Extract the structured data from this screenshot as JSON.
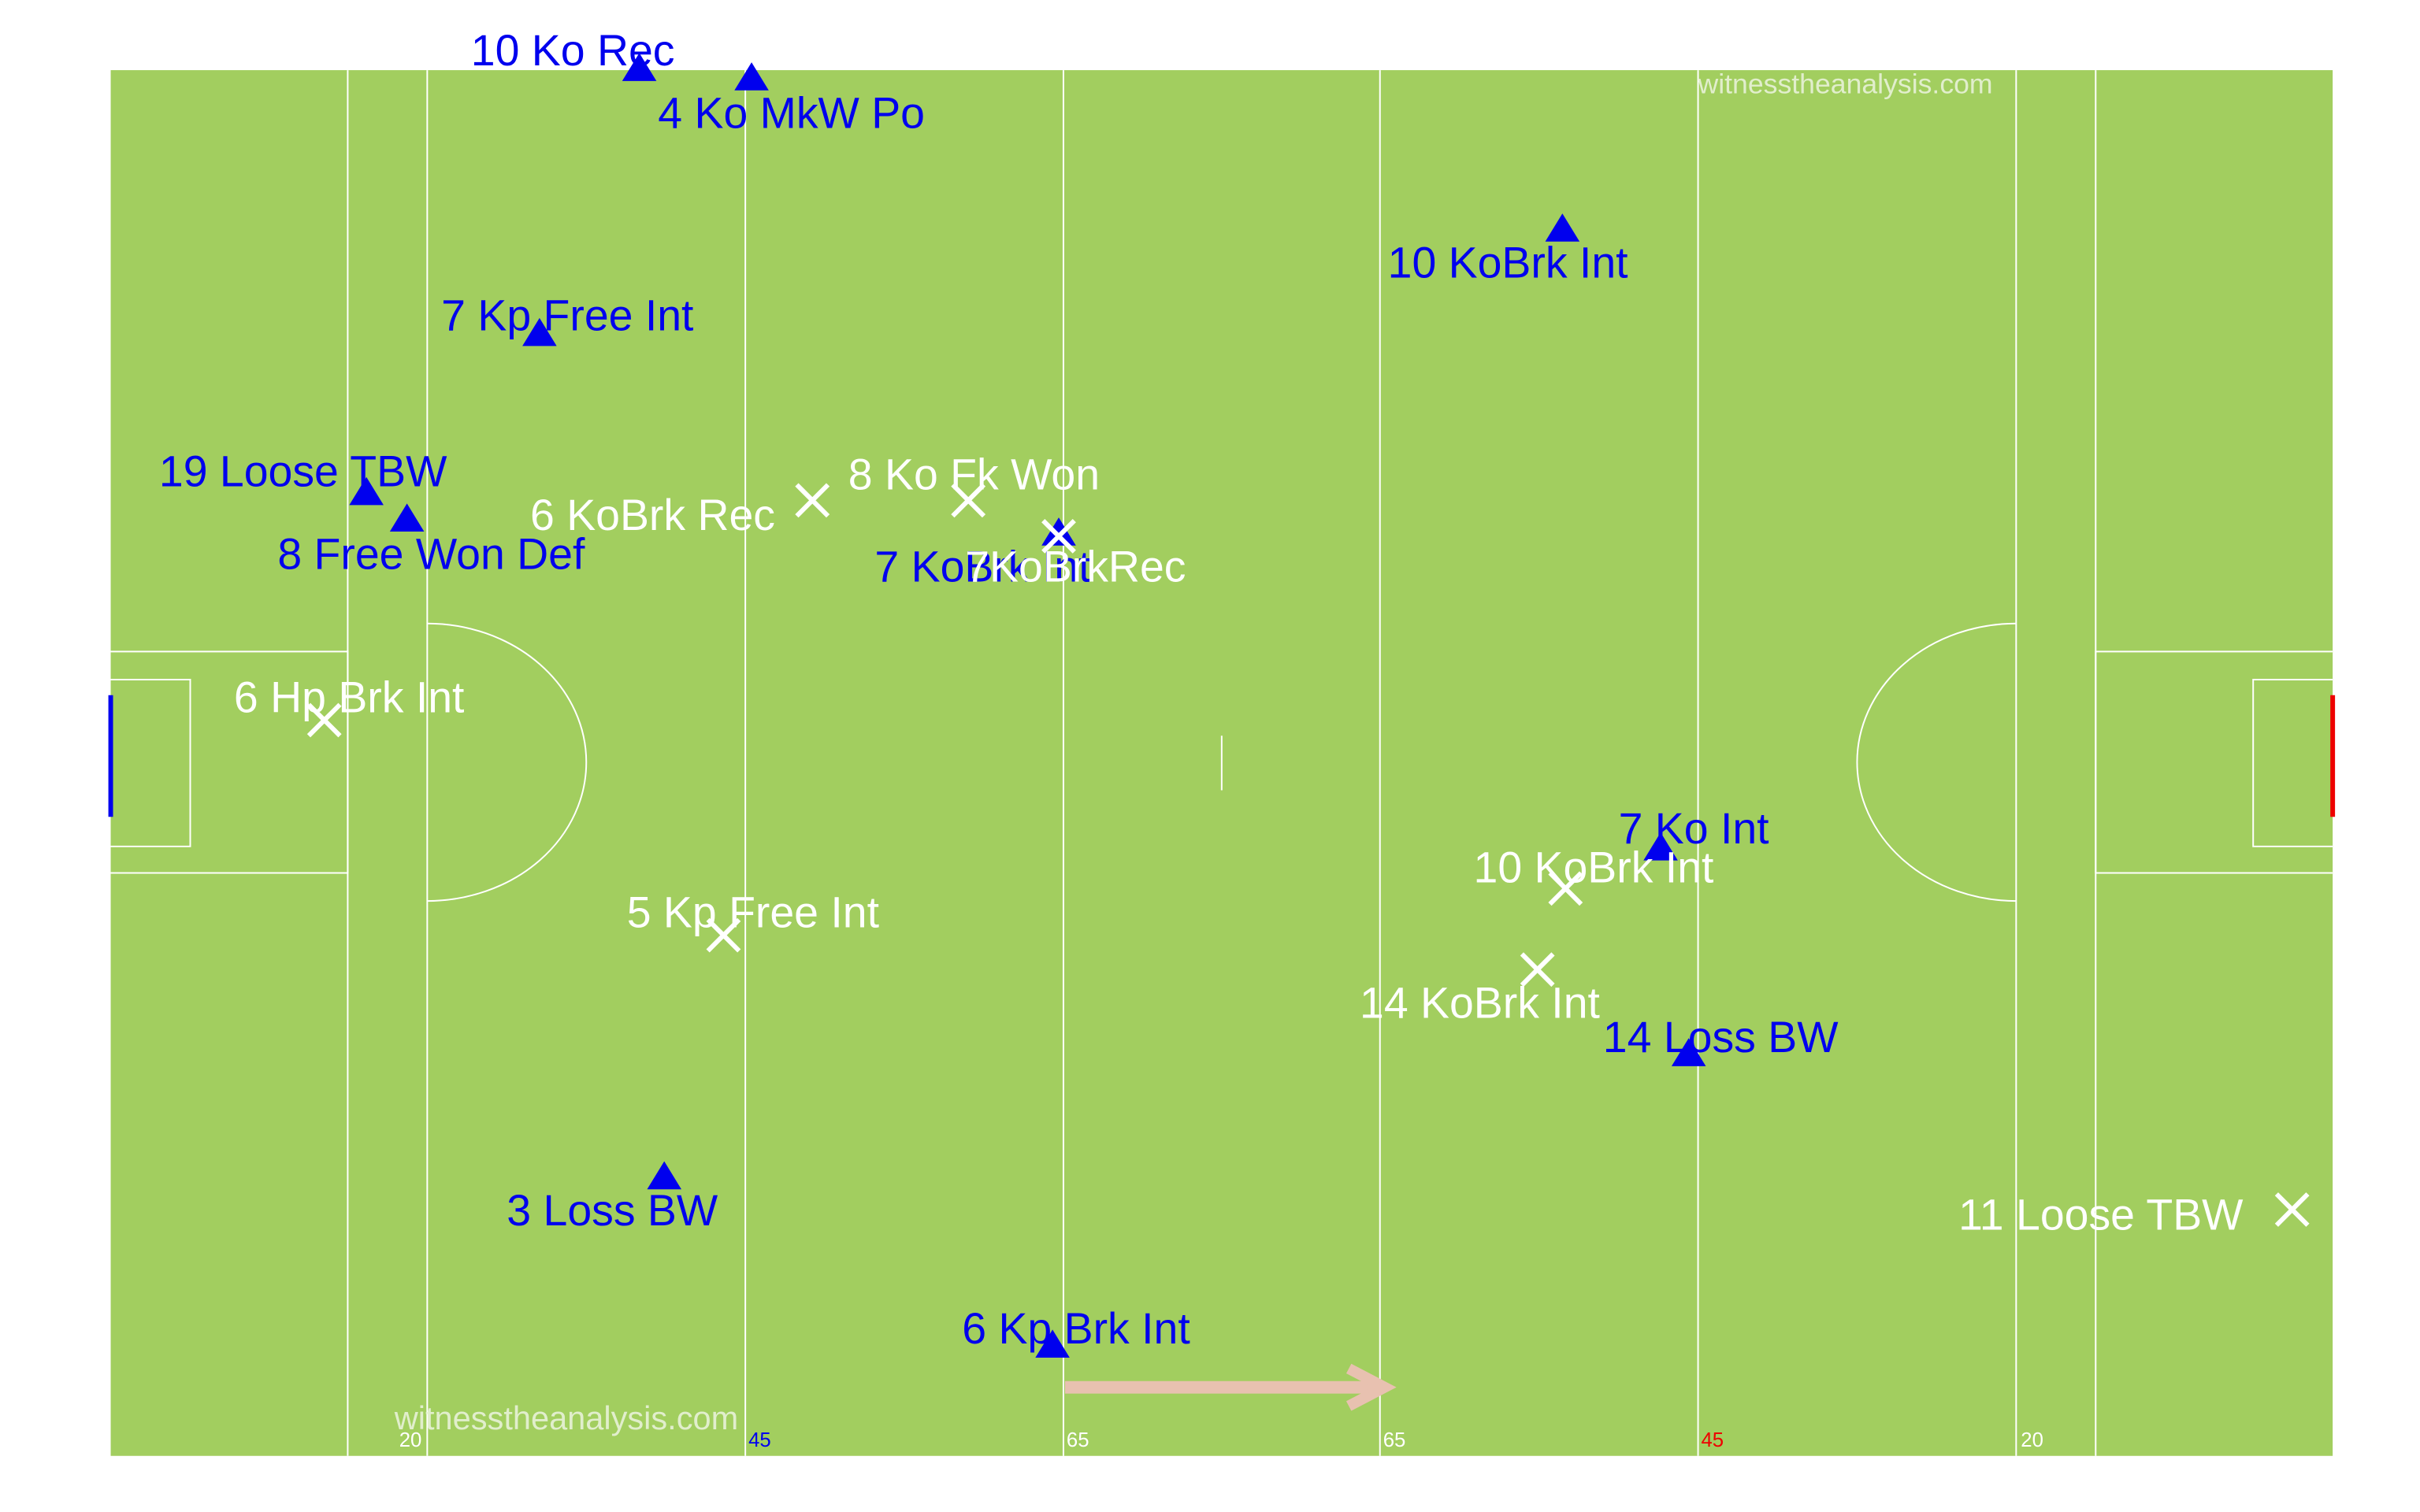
{
  "watermarks": [
    "witnesstheanalysis.com",
    "witnesstheanalysis.com"
  ],
  "distance_labels": [
    {
      "text": "20",
      "color": "#ffffff"
    },
    {
      "text": "45",
      "color": "#0000ee"
    },
    {
      "text": "65",
      "color": "#ffffff"
    },
    {
      "text": "65",
      "color": "#ffffff"
    },
    {
      "text": "45",
      "color": "#ee0000"
    },
    {
      "text": "20",
      "color": "#ffffff"
    }
  ],
  "colors": {
    "pitch": "#a2ce5f",
    "lines": "#ffffff",
    "blue_team": "#0000ee",
    "white_team": "#ffffff",
    "left_goal": "#0000ee",
    "right_goal": "#ee0000",
    "arrow": "#e8c1b0"
  },
  "legend_symbols": {
    "triangle": "triangle-marker",
    "cross": "cross-marker"
  },
  "events": [
    {
      "label": "10 Ko Rec",
      "team": "blue",
      "marker": "triangle"
    },
    {
      "label": "4 Ko MkW Po",
      "team": "blue",
      "marker": "triangle"
    },
    {
      "label": "7 Kp Free Int",
      "team": "blue",
      "marker": "triangle"
    },
    {
      "label": "19 Loose TBW",
      "team": "blue",
      "marker": "triangle"
    },
    {
      "label": "8 Free Won Def",
      "team": "blue",
      "marker": "triangle"
    },
    {
      "label": "10 KoBrk Int",
      "team": "blue",
      "marker": "triangle"
    },
    {
      "label": "7 KoBrk Int",
      "team": "blue",
      "marker": "triangle"
    },
    {
      "label": "7 Ko Int",
      "team": "blue",
      "marker": "triangle"
    },
    {
      "label": "14 Loss BW",
      "team": "blue",
      "marker": "triangle"
    },
    {
      "label": "3 Loss BW",
      "team": "blue",
      "marker": "triangle"
    },
    {
      "label": "6 Kp Brk Int",
      "team": "blue",
      "marker": "triangle"
    },
    {
      "label": "6 KoBrk Rec",
      "team": "white",
      "marker": "cross"
    },
    {
      "label": "8 Ko Fk Won",
      "team": "white",
      "marker": "cross"
    },
    {
      "label": "7KoBrkRec",
      "team": "white",
      "marker": "cross"
    },
    {
      "label": "6 Hp Brk Int",
      "team": "white",
      "marker": "cross"
    },
    {
      "label": "5 Kp Free Int",
      "team": "white",
      "marker": "cross"
    },
    {
      "label": "10 KoBrk Int",
      "team": "white",
      "marker": "cross"
    },
    {
      "label": "14 KoBrk Int",
      "team": "white",
      "marker": "cross"
    },
    {
      "label": "11 Loose TBW",
      "team": "white",
      "marker": "cross"
    }
  ]
}
